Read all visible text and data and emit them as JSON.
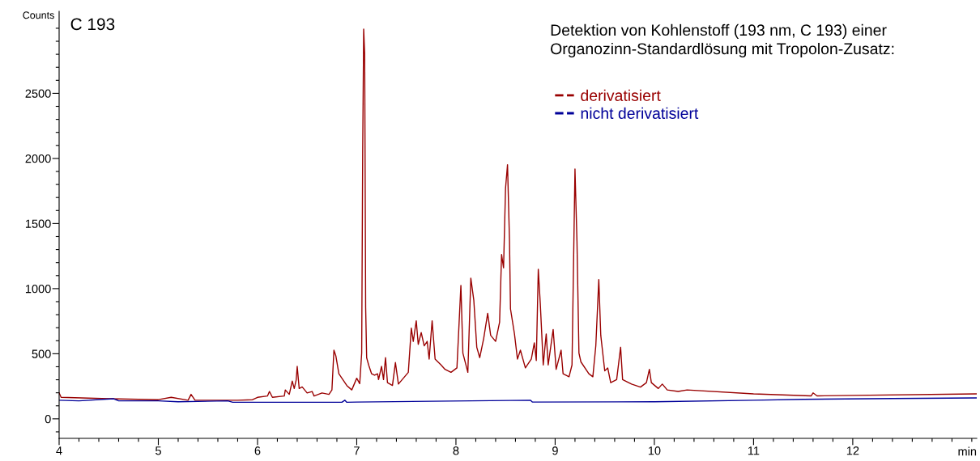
{
  "chart_data": {
    "type": "line",
    "title": "Detektion von Kohlenstoff (193 nm, C 193) einer\nOrganozinn-Standardlösung mit Tropolon-Zusatz:",
    "xlabel": "min",
    "ylabel": "Counts",
    "annotations": [
      "C 193"
    ],
    "series": [
      {
        "name": "derivatisiert",
        "color": "#990000",
        "x": [
          4.0,
          4.02,
          4.5,
          5.0,
          5.13,
          5.3,
          5.33,
          5.37,
          5.8,
          5.95,
          6.0,
          6.1,
          6.12,
          6.15,
          6.27,
          6.28,
          6.32,
          6.35,
          6.37,
          6.39,
          6.4,
          6.42,
          6.45,
          6.5,
          6.55,
          6.57,
          6.65,
          6.72,
          6.75,
          6.77,
          6.79,
          6.82,
          6.9,
          6.95,
          7.0,
          7.03,
          7.05,
          7.06,
          7.07,
          7.08,
          7.09,
          7.1,
          7.12,
          7.15,
          7.18,
          7.21,
          7.22,
          7.25,
          7.27,
          7.29,
          7.31,
          7.36,
          7.39,
          7.42,
          7.52,
          7.55,
          7.57,
          7.6,
          7.62,
          7.65,
          7.68,
          7.71,
          7.73,
          7.76,
          7.79,
          7.85,
          7.89,
          7.95,
          8.01,
          8.05,
          8.07,
          8.12,
          8.15,
          8.18,
          8.21,
          8.24,
          8.28,
          8.32,
          8.35,
          8.4,
          8.44,
          8.46,
          8.48,
          8.5,
          8.52,
          8.54,
          8.55,
          8.59,
          8.62,
          8.65,
          8.7,
          8.76,
          8.79,
          8.81,
          8.83,
          8.85,
          8.88,
          8.91,
          8.93,
          8.98,
          9.01,
          9.06,
          9.08,
          9.14,
          9.17,
          9.2,
          9.22,
          9.24,
          9.26,
          9.34,
          9.38,
          9.41,
          9.44,
          9.46,
          9.5,
          9.53,
          9.56,
          9.62,
          9.66,
          9.68,
          9.77,
          9.86,
          9.92,
          9.95,
          9.97,
          10.04,
          10.08,
          10.13,
          10.24,
          10.33,
          11.0,
          11.58,
          11.6,
          11.64,
          13.25
        ],
        "values": [
          199,
          165,
          154,
          147,
          165,
          143,
          188,
          143,
          143,
          147,
          165,
          175,
          210,
          165,
          175,
          222,
          188,
          290,
          233,
          300,
          403,
          233,
          245,
          199,
          210,
          175,
          199,
          188,
          222,
          527,
          482,
          346,
          256,
          222,
          312,
          270,
          505,
          2043,
          2993,
          2801,
          855,
          470,
          414,
          346,
          335,
          346,
          301,
          403,
          301,
          470,
          278,
          256,
          432,
          267,
          357,
          697,
          595,
          753,
          572,
          663,
          561,
          595,
          459,
          753,
          459,
          414,
          380,
          357,
          391,
          1025,
          505,
          357,
          1081,
          912,
          550,
          470,
          618,
          810,
          641,
          595,
          742,
          1262,
          1160,
          1771,
          1952,
          1364,
          844,
          652,
          459,
          527,
          391,
          459,
          584,
          448,
          1149,
          889,
          414,
          652,
          414,
          686,
          380,
          527,
          346,
          323,
          414,
          1919,
          1364,
          505,
          437,
          346,
          323,
          561,
          1070,
          641,
          369,
          391,
          278,
          301,
          550,
          301,
          267,
          244,
          278,
          380,
          278,
          233,
          267,
          222,
          210,
          222,
          192,
          176,
          199,
          176,
          192
        ]
      },
      {
        "name": "nicht derivatisiert",
        "color": "#000099",
        "x": [
          4.0,
          4.2,
          4.55,
          4.6,
          5.0,
          5.2,
          5.7,
          5.75,
          6.85,
          6.88,
          6.9,
          7.0,
          8.75,
          8.77,
          10.0,
          11.0,
          11.5,
          12.4,
          13.25
        ],
        "values": [
          143,
          138,
          154,
          138,
          138,
          131,
          138,
          127,
          127,
          143,
          127,
          129,
          143,
          129,
          131,
          143,
          150,
          156,
          161
        ]
      }
    ],
    "xlim": [
      4,
      13.25
    ],
    "xticks": [
      4,
      {
        "value": 4.2,
        "label": null
      },
      {
        "value": 4.4,
        "label": null
      },
      {
        "value": 4.6,
        "label": null
      },
      {
        "value": 4.8,
        "label": null
      },
      5,
      {
        "value": 5.2,
        "label": null
      },
      {
        "value": 5.4,
        "label": null
      },
      {
        "value": 5.6,
        "label": null
      },
      {
        "value": 5.8,
        "label": null
      },
      6,
      {
        "value": 6.2,
        "label": null
      },
      {
        "value": 6.4,
        "label": null
      },
      {
        "value": 6.6,
        "label": null
      },
      {
        "value": 6.8,
        "label": null
      },
      7,
      {
        "value": 7.2,
        "label": null
      },
      {
        "value": 7.4,
        "label": null
      },
      {
        "value": 7.6,
        "label": null
      },
      {
        "value": 7.8,
        "label": null
      },
      8,
      {
        "value": 8.2,
        "label": null
      },
      {
        "value": 8.4,
        "label": null
      },
      {
        "value": 8.6,
        "label": null
      },
      {
        "value": 8.8,
        "label": null
      },
      9,
      {
        "value": 9.2,
        "label": null
      },
      {
        "value": 9.4,
        "label": null
      },
      {
        "value": 9.6,
        "label": null
      },
      {
        "value": 9.8,
        "label": null
      },
      10,
      {
        "value": 10.2,
        "label": null
      },
      {
        "value": 10.4,
        "label": null
      },
      {
        "value": 10.6,
        "label": null
      },
      {
        "value": 10.8,
        "label": null
      },
      11,
      {
        "value": 11.2,
        "label": null
      },
      {
        "value": 11.4,
        "label": null
      },
      {
        "value": 11.6,
        "label": null
      },
      {
        "value": 11.8,
        "label": null
      },
      12,
      {
        "value": 12.2,
        "label": null
      },
      {
        "value": 12.4,
        "label": null
      },
      {
        "value": 12.6,
        "label": null
      },
      {
        "value": 12.8,
        "label": null
      },
      {
        "value": 13,
        "label": null
      },
      {
        "value": 13.2,
        "label": null
      }
    ],
    "ylim": [
      -150,
      3130
    ],
    "yticks": [
      {
        "value": -100,
        "label": null
      },
      0,
      {
        "value": 100,
        "label": null
      },
      {
        "value": 200,
        "label": null
      },
      {
        "value": 300,
        "label": null
      },
      {
        "value": 400,
        "label": null
      },
      500,
      {
        "value": 600,
        "label": null
      },
      {
        "value": 700,
        "label": null
      },
      {
        "value": 800,
        "label": null
      },
      {
        "value": 900,
        "label": null
      },
      1000,
      {
        "value": 1100,
        "label": null
      },
      {
        "value": 1200,
        "label": null
      },
      {
        "value": 1300,
        "label": null
      },
      {
        "value": 1400,
        "label": null
      },
      1500,
      {
        "value": 1600,
        "label": null
      },
      {
        "value": 1700,
        "label": null
      },
      {
        "value": 1800,
        "label": null
      },
      {
        "value": 1900,
        "label": null
      },
      2000,
      {
        "value": 2100,
        "label": null
      },
      {
        "value": 2200,
        "label": null
      },
      {
        "value": 2300,
        "label": null
      },
      {
        "value": 2400,
        "label": null
      },
      2500,
      {
        "value": 2600,
        "label": null
      },
      {
        "value": 2700,
        "label": null
      },
      {
        "value": 2800,
        "label": null
      },
      {
        "value": 2900,
        "label": null
      },
      {
        "value": 3000,
        "label": null
      }
    ],
    "grid": false,
    "legend": "top right",
    "line_style": "solid",
    "marker": "none"
  }
}
